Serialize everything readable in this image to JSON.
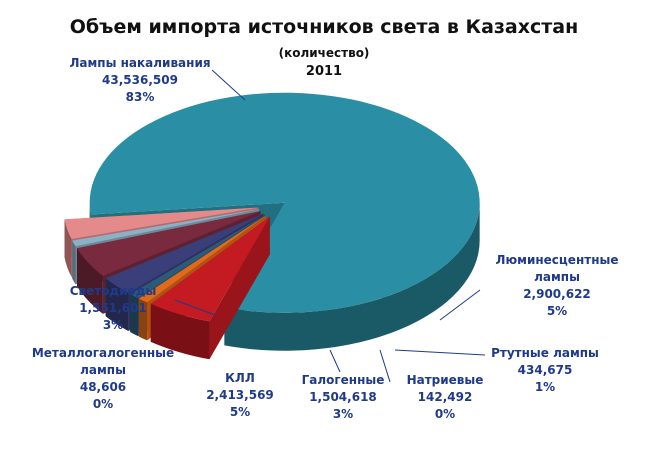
{
  "title": "Объем импорта источников света в Казахстан",
  "subtitle": "(количество)",
  "year": "2011",
  "chart_data": {
    "type": "pie",
    "title": "Объем импорта источников света в Казахстан",
    "subtitle": "(количество)",
    "year": "2011",
    "series": [
      {
        "name": "Лампы накаливания",
        "value": 43536509,
        "value_label": "43,536,509",
        "percent": "83%",
        "color": "#2a8fa4"
      },
      {
        "name": "Люминесцентные лампы",
        "value": 2900622,
        "value_label": "2,900,622",
        "percent": "5%",
        "color": "#c41a22"
      },
      {
        "name": "Ртутные лампы",
        "value": 434675,
        "value_label": "434,675",
        "percent": "1%",
        "color": "#e06a1a"
      },
      {
        "name": "Натриевые",
        "value": 142492,
        "value_label": "142,492",
        "percent": "0%",
        "color": "#2c5a7a"
      },
      {
        "name": "Галогенные",
        "value": 1504618,
        "value_label": "1,504,618",
        "percent": "3%",
        "color": "#3a3f7a"
      },
      {
        "name": "КЛЛ",
        "value": 2413569,
        "value_label": "2,413,569",
        "percent": "5%",
        "color": "#7a2a3e"
      },
      {
        "name": "Металлогалогенные лампы",
        "value": 48606,
        "value_label": "48,606",
        "percent": "0%",
        "color": "#8cb0c4"
      },
      {
        "name": "Светодиоды",
        "value": 1551601,
        "value_label": "1,551,601",
        "percent": "3%",
        "color": "#e58a8a"
      }
    ]
  }
}
